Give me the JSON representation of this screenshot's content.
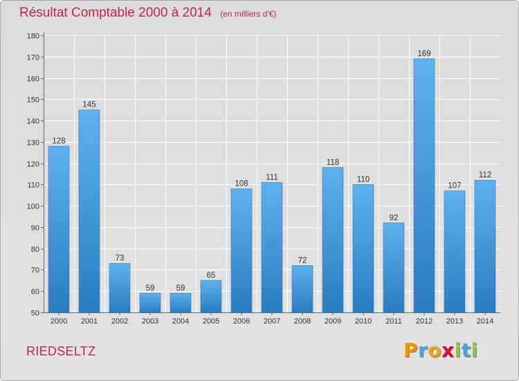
{
  "chart_data": {
    "type": "bar",
    "title": "Résultat Comptable 2000 à 2014",
    "subtitle": "(en milliers d'€)",
    "categories": [
      "2000",
      "2001",
      "2002",
      "2003",
      "2004",
      "2005",
      "2006",
      "2007",
      "2008",
      "2009",
      "2010",
      "2011",
      "2012",
      "2013",
      "2014"
    ],
    "values": [
      128,
      145,
      73,
      59,
      59,
      65,
      108,
      111,
      72,
      118,
      110,
      92,
      169,
      107,
      112
    ],
    "ylim": [
      50,
      180
    ],
    "yticks": [
      50,
      60,
      70,
      80,
      90,
      100,
      110,
      120,
      130,
      140,
      150,
      160,
      170,
      180
    ],
    "grid": true,
    "bar_color": "#3a8fd4"
  },
  "commune": "RIEDSELTZ",
  "logo": {
    "text": "Proxiti",
    "letters": [
      {
        "ch": "P",
        "color": "#f29400"
      },
      {
        "ch": "r",
        "color": "#4ea3dc"
      },
      {
        "ch": "o",
        "color": "#e8a417"
      },
      {
        "ch": "x",
        "color": "#e4003a"
      },
      {
        "ch": "i",
        "color": "#8cc63f"
      },
      {
        "ch": "t",
        "color": "#4ea3dc"
      },
      {
        "ch": "i",
        "color": "#8cc63f"
      }
    ]
  }
}
